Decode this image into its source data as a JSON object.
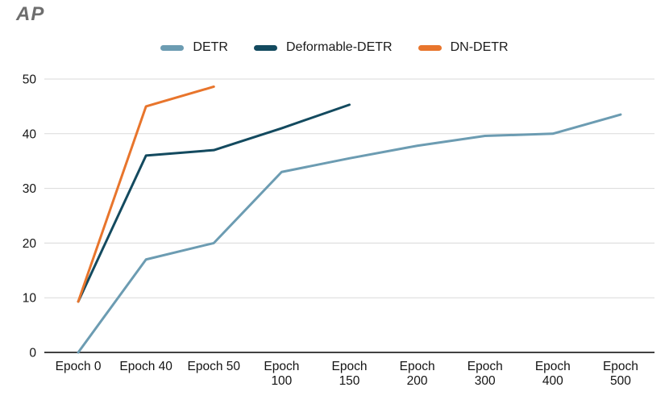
{
  "title": "AP",
  "chart_data": {
    "type": "line",
    "title": "AP",
    "xlabel": "Epoch",
    "ylabel": "AP",
    "categories": [
      "Epoch 0",
      "Epoch 40",
      "Epoch 50",
      "Epoch 100",
      "Epoch 150",
      "Epoch 200",
      "Epoch 300",
      "Epoch 400",
      "Epoch 500"
    ],
    "category_label_lines": [
      [
        "Epoch 0"
      ],
      [
        "Epoch 40"
      ],
      [
        "Epoch 50"
      ],
      [
        "Epoch",
        "100"
      ],
      [
        "Epoch",
        "150"
      ],
      [
        "Epoch",
        "200"
      ],
      [
        "Epoch",
        "300"
      ],
      [
        "Epoch",
        "400"
      ],
      [
        "Epoch",
        "500"
      ]
    ],
    "series": [
      {
        "name": "DETR",
        "color": "#6C9CB2",
        "values": [
          0,
          17,
          20,
          33,
          35.5,
          37.8,
          39.6,
          40,
          43.5
        ]
      },
      {
        "name": "Deformable-DETR",
        "color": "#134A5F",
        "values": [
          9.3,
          36,
          37,
          41,
          45.3,
          null,
          null,
          null,
          null
        ]
      },
      {
        "name": "DN-DETR",
        "color": "#E8752C",
        "values": [
          9.3,
          45,
          48.6,
          null,
          null,
          null,
          null,
          null,
          null
        ]
      }
    ],
    "yticks": [
      0,
      10,
      20,
      30,
      40,
      50
    ],
    "ylim": [
      0,
      50
    ],
    "grid": "horizontal",
    "legend_position": "top"
  },
  "colors": {
    "grid_line": "#DADADA",
    "axis_line": "#424242",
    "tick_text": "#141414",
    "title_text": "#6E6E6E"
  }
}
